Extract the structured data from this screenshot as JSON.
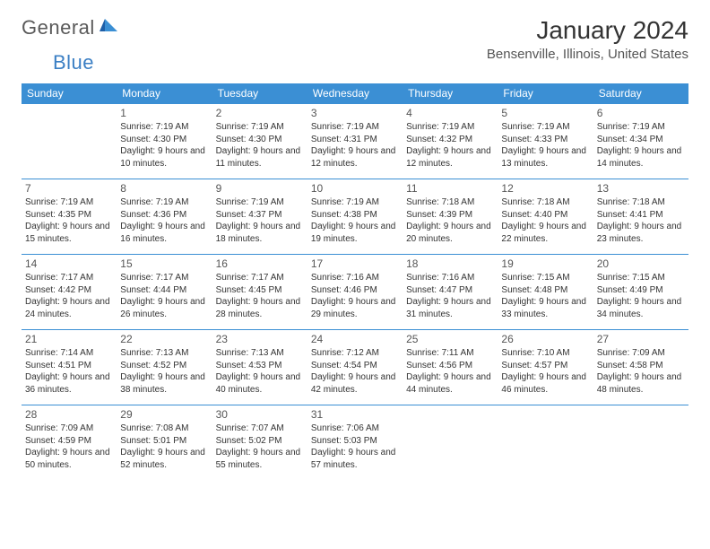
{
  "logo": {
    "text1": "General",
    "text2": "Blue"
  },
  "title": "January 2024",
  "location": "Bensenville, Illinois, United States",
  "colors": {
    "header_bg": "#3b8fd4",
    "header_fg": "#ffffff",
    "rule": "#3b8fd4",
    "text": "#333333",
    "muted": "#555555",
    "logo_gray": "#5a5a5a",
    "logo_blue": "#3b7fc4"
  },
  "day_names": [
    "Sunday",
    "Monday",
    "Tuesday",
    "Wednesday",
    "Thursday",
    "Friday",
    "Saturday"
  ],
  "weeks": [
    [
      null,
      {
        "d": "1",
        "sr": "7:19 AM",
        "ss": "4:30 PM",
        "dl": "9 hours and 10 minutes."
      },
      {
        "d": "2",
        "sr": "7:19 AM",
        "ss": "4:30 PM",
        "dl": "9 hours and 11 minutes."
      },
      {
        "d": "3",
        "sr": "7:19 AM",
        "ss": "4:31 PM",
        "dl": "9 hours and 12 minutes."
      },
      {
        "d": "4",
        "sr": "7:19 AM",
        "ss": "4:32 PM",
        "dl": "9 hours and 12 minutes."
      },
      {
        "d": "5",
        "sr": "7:19 AM",
        "ss": "4:33 PM",
        "dl": "9 hours and 13 minutes."
      },
      {
        "d": "6",
        "sr": "7:19 AM",
        "ss": "4:34 PM",
        "dl": "9 hours and 14 minutes."
      }
    ],
    [
      {
        "d": "7",
        "sr": "7:19 AM",
        "ss": "4:35 PM",
        "dl": "9 hours and 15 minutes."
      },
      {
        "d": "8",
        "sr": "7:19 AM",
        "ss": "4:36 PM",
        "dl": "9 hours and 16 minutes."
      },
      {
        "d": "9",
        "sr": "7:19 AM",
        "ss": "4:37 PM",
        "dl": "9 hours and 18 minutes."
      },
      {
        "d": "10",
        "sr": "7:19 AM",
        "ss": "4:38 PM",
        "dl": "9 hours and 19 minutes."
      },
      {
        "d": "11",
        "sr": "7:18 AM",
        "ss": "4:39 PM",
        "dl": "9 hours and 20 minutes."
      },
      {
        "d": "12",
        "sr": "7:18 AM",
        "ss": "4:40 PM",
        "dl": "9 hours and 22 minutes."
      },
      {
        "d": "13",
        "sr": "7:18 AM",
        "ss": "4:41 PM",
        "dl": "9 hours and 23 minutes."
      }
    ],
    [
      {
        "d": "14",
        "sr": "7:17 AM",
        "ss": "4:42 PM",
        "dl": "9 hours and 24 minutes."
      },
      {
        "d": "15",
        "sr": "7:17 AM",
        "ss": "4:44 PM",
        "dl": "9 hours and 26 minutes."
      },
      {
        "d": "16",
        "sr": "7:17 AM",
        "ss": "4:45 PM",
        "dl": "9 hours and 28 minutes."
      },
      {
        "d": "17",
        "sr": "7:16 AM",
        "ss": "4:46 PM",
        "dl": "9 hours and 29 minutes."
      },
      {
        "d": "18",
        "sr": "7:16 AM",
        "ss": "4:47 PM",
        "dl": "9 hours and 31 minutes."
      },
      {
        "d": "19",
        "sr": "7:15 AM",
        "ss": "4:48 PM",
        "dl": "9 hours and 33 minutes."
      },
      {
        "d": "20",
        "sr": "7:15 AM",
        "ss": "4:49 PM",
        "dl": "9 hours and 34 minutes."
      }
    ],
    [
      {
        "d": "21",
        "sr": "7:14 AM",
        "ss": "4:51 PM",
        "dl": "9 hours and 36 minutes."
      },
      {
        "d": "22",
        "sr": "7:13 AM",
        "ss": "4:52 PM",
        "dl": "9 hours and 38 minutes."
      },
      {
        "d": "23",
        "sr": "7:13 AM",
        "ss": "4:53 PM",
        "dl": "9 hours and 40 minutes."
      },
      {
        "d": "24",
        "sr": "7:12 AM",
        "ss": "4:54 PM",
        "dl": "9 hours and 42 minutes."
      },
      {
        "d": "25",
        "sr": "7:11 AM",
        "ss": "4:56 PM",
        "dl": "9 hours and 44 minutes."
      },
      {
        "d": "26",
        "sr": "7:10 AM",
        "ss": "4:57 PM",
        "dl": "9 hours and 46 minutes."
      },
      {
        "d": "27",
        "sr": "7:09 AM",
        "ss": "4:58 PM",
        "dl": "9 hours and 48 minutes."
      }
    ],
    [
      {
        "d": "28",
        "sr": "7:09 AM",
        "ss": "4:59 PM",
        "dl": "9 hours and 50 minutes."
      },
      {
        "d": "29",
        "sr": "7:08 AM",
        "ss": "5:01 PM",
        "dl": "9 hours and 52 minutes."
      },
      {
        "d": "30",
        "sr": "7:07 AM",
        "ss": "5:02 PM",
        "dl": "9 hours and 55 minutes."
      },
      {
        "d": "31",
        "sr": "7:06 AM",
        "ss": "5:03 PM",
        "dl": "9 hours and 57 minutes."
      },
      null,
      null,
      null
    ]
  ],
  "labels": {
    "sunrise": "Sunrise:",
    "sunset": "Sunset:",
    "daylight": "Daylight:"
  }
}
